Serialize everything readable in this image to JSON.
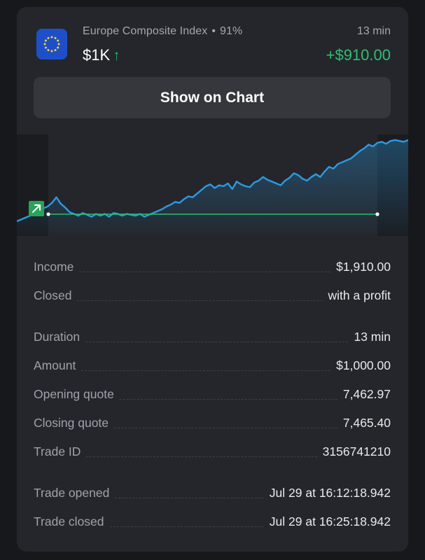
{
  "header": {
    "asset_name": "Europe Composite Index",
    "payout": "91%",
    "separator": "•",
    "investment": "$1K",
    "direction_arrow": "↑",
    "duration_short": "13 min",
    "profit": "+$910.00",
    "flag_icon": "eu-flag-icon",
    "colors": {
      "profit": "#2fbf71",
      "flag": "#1f4fc8"
    }
  },
  "show_chart_button": {
    "label": "Show on Chart"
  },
  "trade_chart": {
    "direction_badge_icon": "arrow-up-right-icon",
    "colors": {
      "line": "#2b9be4",
      "entry_line": "#27c071",
      "badge": "#2aa35a"
    },
    "price_series": [
      0.12,
      0.14,
      0.16,
      0.18,
      0.21,
      0.24,
      0.26,
      0.28,
      0.32,
      0.38,
      0.31,
      0.27,
      0.22,
      0.2,
      0.18,
      0.21,
      0.19,
      0.17,
      0.2,
      0.18,
      0.2,
      0.17,
      0.21,
      0.2,
      0.18,
      0.2,
      0.19,
      0.18,
      0.2,
      0.17,
      0.19,
      0.21,
      0.23,
      0.25,
      0.28,
      0.3,
      0.33,
      0.32,
      0.36,
      0.39,
      0.38,
      0.42,
      0.46,
      0.5,
      0.52,
      0.48,
      0.51,
      0.5,
      0.53,
      0.47,
      0.55,
      0.52,
      0.5,
      0.49,
      0.54,
      0.56,
      0.6,
      0.57,
      0.55,
      0.53,
      0.51,
      0.56,
      0.59,
      0.64,
      0.62,
      0.58,
      0.56,
      0.6,
      0.63,
      0.6,
      0.66,
      0.71,
      0.69,
      0.74,
      0.76,
      0.78,
      0.8,
      0.84,
      0.88,
      0.91,
      0.95,
      0.93,
      0.97,
      0.98,
      0.96,
      0.99,
      1.0,
      0.99,
      0.98,
      1.0
    ]
  },
  "details": {
    "income": {
      "label": "Income",
      "value": "$1,910.00"
    },
    "closed": {
      "label": "Closed",
      "value": "with a profit"
    },
    "duration": {
      "label": "Duration",
      "value": "13 min"
    },
    "amount": {
      "label": "Amount",
      "value": "$1,000.00"
    },
    "opening_quote": {
      "label": "Opening quote",
      "value": "7,462.97"
    },
    "closing_quote": {
      "label": "Closing quote",
      "value": "7,465.40"
    },
    "trade_id": {
      "label": "Trade ID",
      "value": "3156741210"
    },
    "trade_opened": {
      "label": "Trade opened",
      "value": "Jul 29 at 16:12:18.942"
    },
    "trade_closed": {
      "label": "Trade closed",
      "value": "Jul 29 at 16:25:18.942"
    }
  }
}
